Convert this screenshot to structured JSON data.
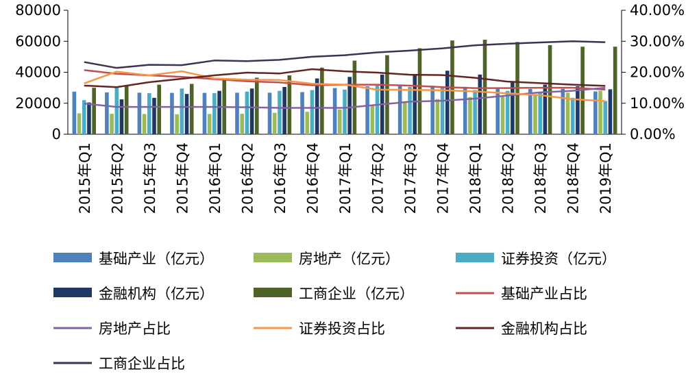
{
  "chart_data": {
    "type": "bar",
    "title": "",
    "xlabel": "",
    "ylabel": "",
    "categories": [
      "2015年Q1",
      "2015年Q2",
      "2015年Q3",
      "2015年Q4",
      "2016年Q1",
      "2016年Q2",
      "2016年Q3",
      "2016年Q4",
      "2017年Q1",
      "2017年Q2",
      "2017年Q3",
      "2017年Q4",
      "2018年Q1",
      "2018年Q2",
      "2018年Q3",
      "2018年Q4",
      "2019年Q1"
    ],
    "y_left": {
      "min": 0,
      "max": 80000,
      "ticks": [
        "0",
        "20000",
        "40000",
        "60000",
        "80000"
      ],
      "tick_values": [
        0,
        20000,
        40000,
        60000,
        80000
      ]
    },
    "y_right": {
      "min": 0,
      "max": 0.4,
      "ticks": [
        "0.00%",
        "10.00%",
        "20.00%",
        "30.00%",
        "40.00%"
      ],
      "tick_values": [
        0,
        0.1,
        0.2,
        0.3,
        0.4
      ]
    },
    "bar_series": [
      {
        "name": "基础产业（亿元）",
        "color": "#4f81bd",
        "values": [
          27500,
          27000,
          26800,
          26700,
          26700,
          26800,
          26800,
          27200,
          29800,
          31000,
          31300,
          31300,
          30600,
          29800,
          29200,
          29300,
          27600
        ]
      },
      {
        "name": "房地产（亿元）",
        "color": "#9bbb59",
        "values": [
          13500,
          13200,
          13100,
          12900,
          13100,
          13200,
          13800,
          14500,
          16000,
          18500,
          21300,
          22700,
          24000,
          25000,
          25800,
          26800,
          28000
        ]
      },
      {
        "name": "证券投资（亿元）",
        "color": "#4bacc6",
        "values": [
          22000,
          30000,
          26500,
          29500,
          26500,
          27500,
          28000,
          28500,
          28800,
          31500,
          30500,
          30000,
          28500,
          28000,
          27000,
          23500,
          21500
        ]
      },
      {
        "name": "金融机构（亿元）",
        "color": "#1f3864",
        "values": [
          20500,
          22500,
          23500,
          26000,
          28000,
          29500,
          30500,
          36000,
          37000,
          38500,
          38500,
          41000,
          38500,
          34000,
          32000,
          31000,
          29000
        ]
      },
      {
        "name": "工商企业（亿元）",
        "color": "#4f6228",
        "values": [
          30000,
          31000,
          32000,
          32500,
          35000,
          36500,
          38000,
          43000,
          47500,
          51000,
          55500,
          60500,
          61000,
          59500,
          57500,
          56500,
          56500
        ]
      }
    ],
    "line_series": [
      {
        "name": "基础产业占比",
        "color": "#c0504d",
        "values": [
          0.207,
          0.195,
          0.19,
          0.185,
          0.178,
          0.171,
          0.167,
          0.158,
          0.16,
          0.16,
          0.157,
          0.152,
          0.149,
          0.149,
          0.15,
          0.15,
          0.144
        ]
      },
      {
        "name": "房地产占比",
        "color": "#8064a2",
        "values": [
          0.099,
          0.088,
          0.088,
          0.088,
          0.088,
          0.087,
          0.085,
          0.085,
          0.085,
          0.095,
          0.105,
          0.108,
          0.115,
          0.125,
          0.135,
          0.14,
          0.15
        ]
      },
      {
        "name": "证券投资占比",
        "color": "#f79646",
        "values": [
          0.164,
          0.202,
          0.19,
          0.203,
          0.18,
          0.176,
          0.175,
          0.163,
          0.16,
          0.144,
          0.143,
          0.142,
          0.138,
          0.132,
          0.126,
          0.113,
          0.107
        ]
      },
      {
        "name": "金融机构占比",
        "color": "#632423",
        "values": [
          0.157,
          0.152,
          0.168,
          0.179,
          0.19,
          0.199,
          0.196,
          0.21,
          0.203,
          0.199,
          0.192,
          0.191,
          0.182,
          0.17,
          0.165,
          0.16,
          0.156
        ]
      },
      {
        "name": "工商企业占比",
        "color": "#3f3151",
        "values": [
          0.233,
          0.214,
          0.224,
          0.223,
          0.238,
          0.236,
          0.24,
          0.25,
          0.255,
          0.264,
          0.27,
          0.277,
          0.287,
          0.292,
          0.296,
          0.3,
          0.297
        ]
      }
    ],
    "legend_position": "bottom",
    "grid": false
  }
}
